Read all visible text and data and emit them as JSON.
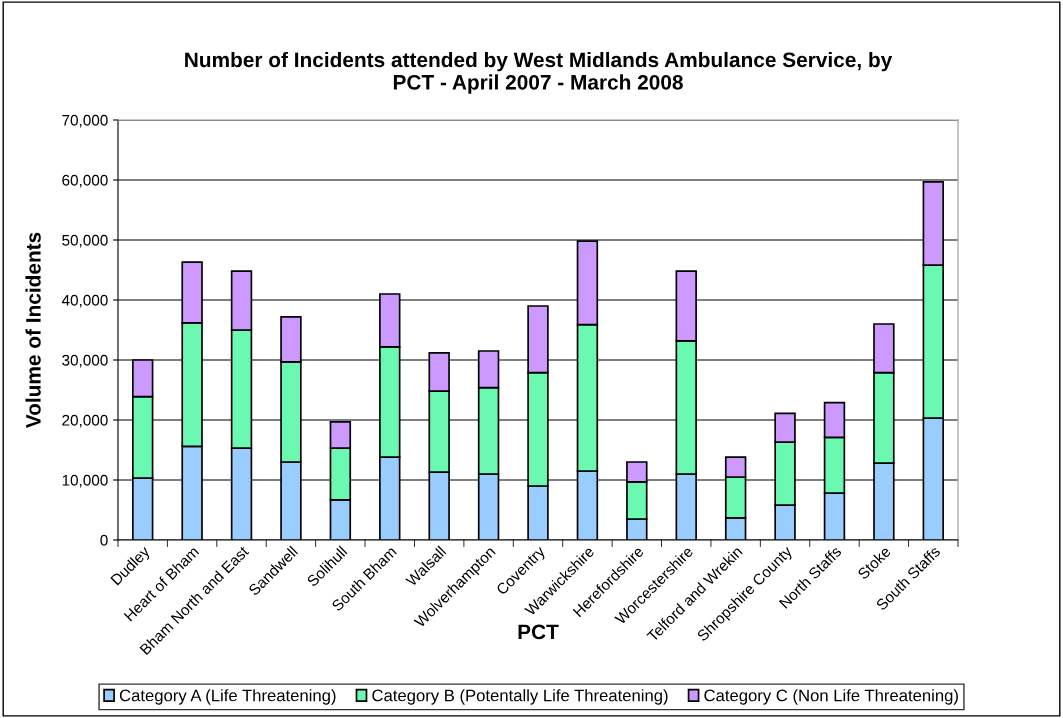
{
  "chart_data": {
    "type": "bar",
    "stacked": true,
    "title": "Number of Incidents attended by West Midlands Ambulance Service, by\nPCT - April 2007 - March 2008",
    "xlabel": "PCT",
    "ylabel": "Volume of Incidents",
    "categories": [
      "Dudley",
      "Heart of Bham",
      "Bham North and East",
      "Sandwell",
      "Solihull",
      "South Bham",
      "Walsall",
      "Wolverhampton",
      "Coventry",
      "Warwickshire",
      "Herefordshire",
      "Worcestershire",
      "Telford and Wrekin",
      "Shropshire County",
      "North Staffs",
      "Stoke",
      "South Staffs"
    ],
    "series": [
      {
        "name": "Category A (Life Threatening)",
        "color": "#99ccff",
        "values": [
          10300,
          15600,
          15300,
          13000,
          6700,
          13800,
          11300,
          11000,
          9000,
          11500,
          3500,
          11000,
          3700,
          5800,
          7800,
          12800,
          20300
        ]
      },
      {
        "name": "Category B (Potentally Life Threatening)",
        "color": "#6bf8b0",
        "values": [
          13600,
          20600,
          19700,
          16700,
          8600,
          18400,
          13500,
          14400,
          18900,
          24400,
          6200,
          22200,
          6800,
          10500,
          9300,
          15100,
          25500
        ]
      },
      {
        "name": "Category C (Non Life Threatening)",
        "color": "#cc99ff",
        "values": [
          6100,
          10100,
          9800,
          7500,
          4400,
          8800,
          6400,
          6100,
          11100,
          13900,
          3300,
          11600,
          3300,
          4800,
          5800,
          8100,
          13900
        ]
      }
    ],
    "ylim": [
      0,
      70000
    ],
    "yticks": [
      {
        "value": 0,
        "label": "0"
      },
      {
        "value": 10000,
        "label": "10,000"
      },
      {
        "value": 20000,
        "label": "20,000"
      },
      {
        "value": 30000,
        "label": "30,000"
      },
      {
        "value": 40000,
        "label": "40,000"
      },
      {
        "value": 50000,
        "label": "50,000"
      },
      {
        "value": 60000,
        "label": "60,000"
      },
      {
        "value": 70000,
        "label": "70,000"
      }
    ],
    "grid": "y",
    "legend": "bottom"
  }
}
